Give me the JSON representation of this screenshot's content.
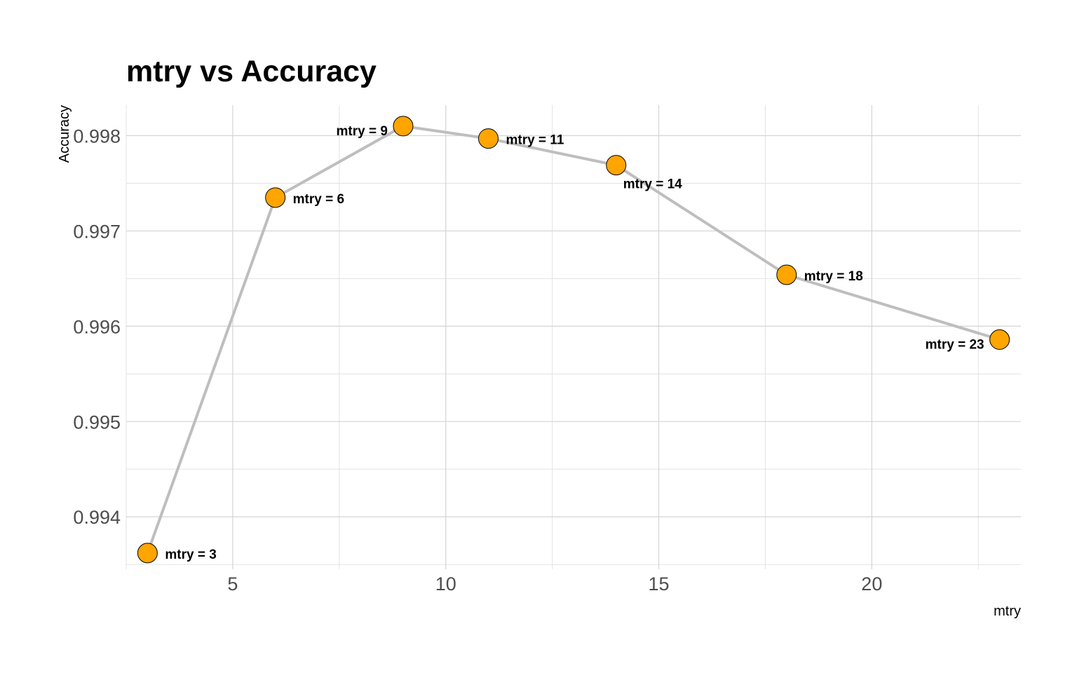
{
  "chart_data": {
    "type": "line",
    "title": "mtry vs Accuracy",
    "xlabel": "mtry",
    "ylabel": "Accuracy",
    "xlim": [
      2.5,
      23.5
    ],
    "ylim": [
      0.99345,
      0.99832
    ],
    "x_ticks": [
      5,
      10,
      15,
      20
    ],
    "x_tick_labels": [
      "5",
      "10",
      "15",
      "20"
    ],
    "y_ticks": [
      0.994,
      0.995,
      0.996,
      0.997,
      0.998
    ],
    "y_tick_labels": [
      "0.994",
      "0.995",
      "0.996",
      "0.997",
      "0.998"
    ],
    "grid": true,
    "legend": "none",
    "series": [
      {
        "line_color": "#bebebe",
        "marker_color": "#ffa500",
        "marker_edge": "#000000",
        "points": [
          {
            "x": 3,
            "y": 0.99362,
            "label": "mtry = 3",
            "label_side": "right"
          },
          {
            "x": 6,
            "y": 0.99735,
            "label": "mtry = 6",
            "label_side": "right"
          },
          {
            "x": 9,
            "y": 0.9981,
            "label": "mtry = 9",
            "label_side": "left"
          },
          {
            "x": 11,
            "y": 0.99797,
            "label": "mtry = 11",
            "label_side": "right"
          },
          {
            "x": 14,
            "y": 0.99769,
            "label": "mtry = 14",
            "label_side": "below"
          },
          {
            "x": 18,
            "y": 0.99654,
            "label": "mtry = 18",
            "label_side": "right"
          },
          {
            "x": 23,
            "y": 0.99586,
            "label": "mtry = 23",
            "label_side": "left"
          }
        ]
      }
    ]
  }
}
